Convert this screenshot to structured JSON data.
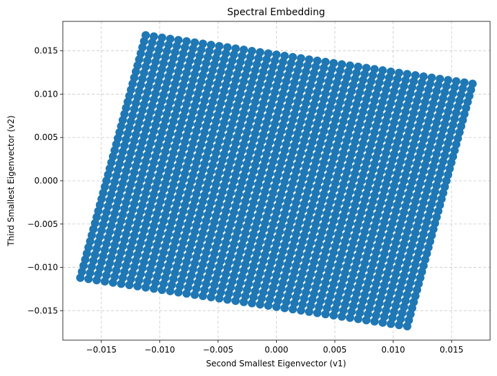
{
  "chart_data": {
    "type": "scatter",
    "title": "Spectral Embedding",
    "xlabel": "Second Smallest Eigenvector (v1)",
    "ylabel": "Third Smallest Eigenvector (v2)",
    "xlim": [
      -0.0183,
      0.0183
    ],
    "ylim": [
      -0.0184,
      0.0184
    ],
    "xticks": [
      -0.015,
      -0.01,
      -0.005,
      0.0,
      0.005,
      0.01,
      0.015
    ],
    "xtick_labels": [
      "−0.015",
      "−0.010",
      "−0.005",
      "0.000",
      "0.005",
      "0.010",
      "0.015"
    ],
    "yticks": [
      -0.015,
      -0.01,
      -0.005,
      0.0,
      0.005,
      0.01,
      0.015
    ],
    "ytick_labels": [
      "−0.015",
      "−0.010",
      "−0.005",
      "0.000",
      "0.005",
      "0.010",
      "0.015"
    ],
    "grid": true,
    "marker_color": "#1f77b4",
    "series": [
      {
        "points_description": "dense grid of points filling a rotated square",
        "corners": [
          {
            "x": -0.0112,
            "y": 0.0168
          },
          {
            "x": 0.0168,
            "y": 0.0112
          },
          {
            "x": 0.0112,
            "y": -0.0168
          },
          {
            "x": -0.0168,
            "y": -0.0112
          }
        ],
        "grid_n": 40
      }
    ]
  }
}
